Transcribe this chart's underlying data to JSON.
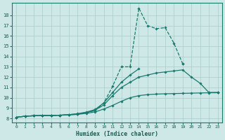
{
  "xlabel": "Humidex (Indice chaleur)",
  "bg_color": "#cde8e6",
  "grid_color": "#aaccca",
  "line_color": "#1a7a6e",
  "xlim": [
    -0.5,
    23.5
  ],
  "ylim": [
    7.6,
    19.2
  ],
  "xticks": [
    0,
    1,
    2,
    3,
    4,
    5,
    6,
    7,
    8,
    9,
    10,
    11,
    12,
    13,
    14,
    15,
    16,
    17,
    18,
    19,
    20,
    21,
    22,
    23
  ],
  "yticks": [
    8,
    9,
    10,
    11,
    12,
    13,
    14,
    15,
    16,
    17,
    18
  ],
  "lines": [
    {
      "style": "dashed",
      "x": [
        0,
        1,
        2,
        3,
        4,
        5,
        6,
        7,
        8,
        9,
        10,
        11,
        12,
        13,
        14,
        15,
        16,
        17,
        18,
        19
      ],
      "y": [
        8.1,
        8.2,
        8.25,
        8.27,
        8.28,
        8.3,
        8.35,
        8.4,
        8.55,
        8.75,
        9.5,
        11.1,
        13.0,
        13.0,
        18.7,
        17.0,
        16.7,
        16.8,
        15.3,
        13.3
      ]
    },
    {
      "style": "solid",
      "x": [
        0,
        1,
        2,
        3,
        4,
        5,
        6,
        7,
        8,
        9,
        10,
        11,
        12,
        13,
        14,
        15,
        16,
        17,
        18,
        19,
        20,
        21,
        22,
        23
      ],
      "y": [
        8.1,
        8.2,
        8.25,
        8.27,
        8.28,
        8.3,
        8.35,
        8.45,
        8.6,
        8.85,
        9.5,
        10.5,
        11.5,
        12.2,
        12.8,
        null,
        null,
        null,
        null,
        13.3,
        null,
        null,
        10.5,
        10.5
      ]
    },
    {
      "style": "solid",
      "x": [
        0,
        1,
        2,
        3,
        4,
        5,
        6,
        7,
        8,
        9,
        10,
        11,
        12,
        13,
        14,
        15,
        16,
        17,
        18,
        19,
        20,
        21,
        22,
        23
      ],
      "y": [
        8.1,
        8.2,
        8.25,
        8.27,
        8.28,
        8.3,
        8.35,
        8.42,
        8.56,
        8.78,
        9.3,
        10.2,
        11.0,
        11.5,
        12.0,
        12.2,
        12.4,
        12.5,
        12.6,
        12.7,
        12.0,
        11.4,
        10.5,
        10.5
      ]
    },
    {
      "style": "solid",
      "x": [
        0,
        1,
        2,
        3,
        4,
        5,
        6,
        7,
        8,
        9,
        10,
        11,
        12,
        13,
        14,
        15,
        16,
        17,
        18,
        19,
        20,
        21,
        22,
        23
      ],
      "y": [
        8.1,
        8.2,
        8.25,
        8.27,
        8.28,
        8.3,
        8.32,
        8.38,
        8.48,
        8.62,
        8.9,
        9.25,
        9.65,
        10.0,
        10.2,
        10.3,
        10.35,
        10.38,
        10.4,
        10.42,
        10.44,
        10.46,
        10.48,
        10.5
      ]
    }
  ]
}
